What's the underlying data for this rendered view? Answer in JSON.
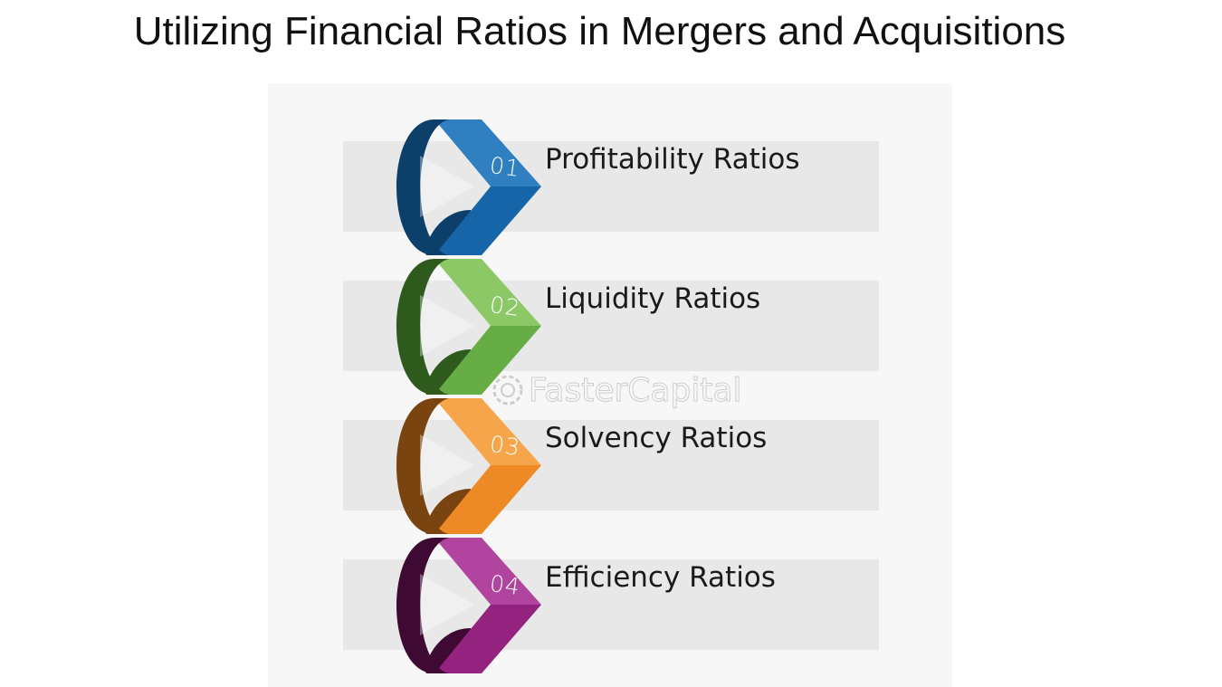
{
  "title": "Utilizing Financial Ratios in Mergers and Acquisitions",
  "steps": [
    {
      "number": "01",
      "label": "Profitability Ratios",
      "color_light": "#2f7fc1",
      "color_main": "#1565a8",
      "color_dark": "#0d3f6b"
    },
    {
      "number": "02",
      "label": "Liquidity Ratios",
      "color_light": "#8cc966",
      "color_main": "#67ad45",
      "color_dark": "#2f5a1e"
    },
    {
      "number": "03",
      "label": "Solvency Ratios",
      "color_light": "#f6a54a",
      "color_main": "#ee8a25",
      "color_dark": "#7a4410"
    },
    {
      "number": "04",
      "label": "Efficiency Ratios",
      "color_light": "#b0449e",
      "color_main": "#93237f",
      "color_dark": "#3e0a33"
    }
  ],
  "watermark": "FasterCapital"
}
